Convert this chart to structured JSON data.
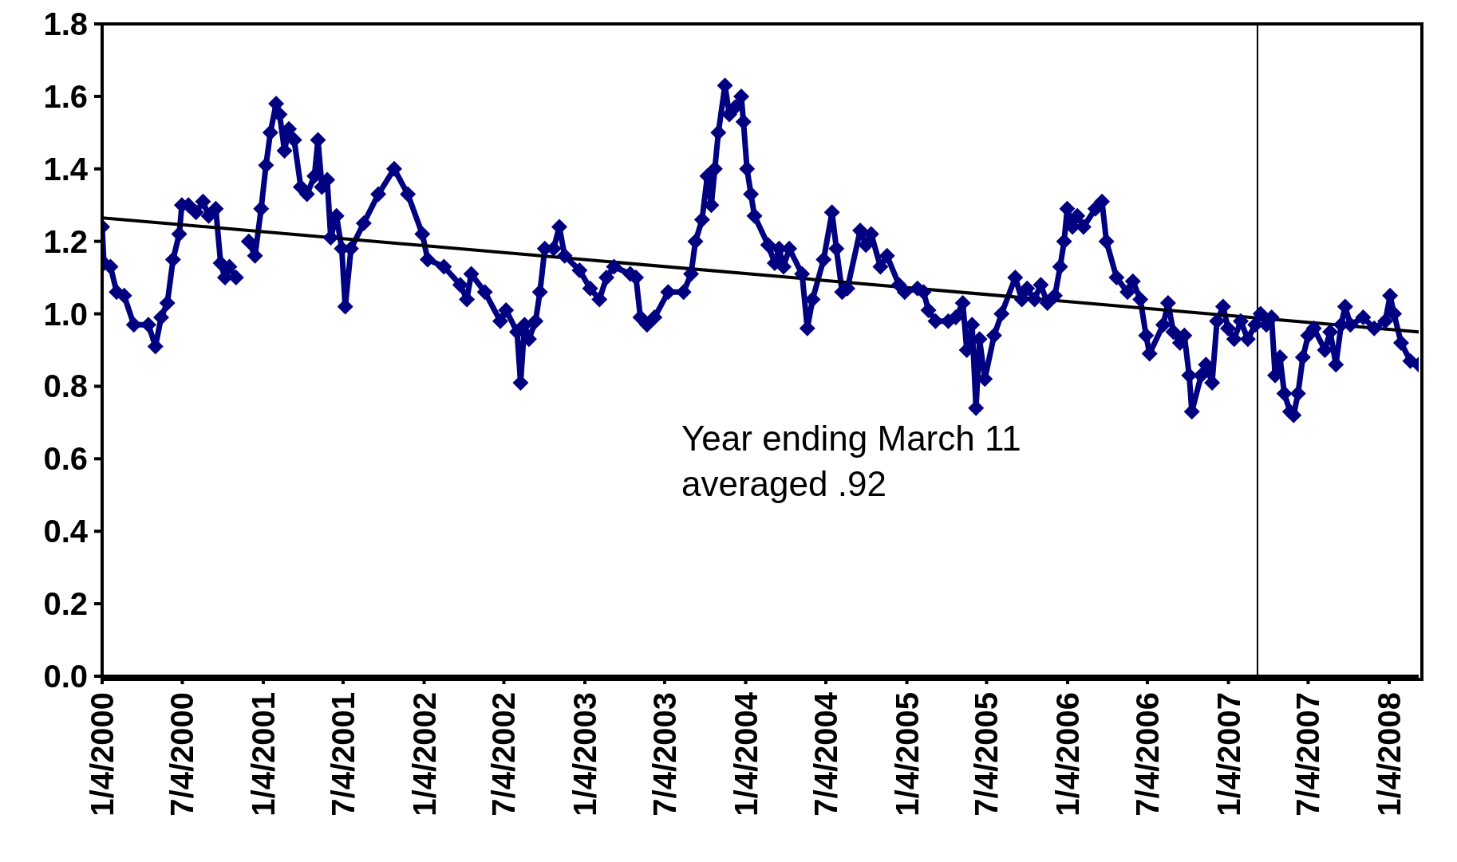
{
  "chart_data": {
    "type": "line",
    "xlim": [
      "2000-01-04",
      "2008-03-11"
    ],
    "xticks": [
      {
        "value": "2000-01-04",
        "label": "1/4/2000"
      },
      {
        "value": "2000-07-04",
        "label": "7/4/2000"
      },
      {
        "value": "2001-01-04",
        "label": "1/4/2001"
      },
      {
        "value": "2001-07-04",
        "label": "7/4/2001"
      },
      {
        "value": "2002-01-04",
        "label": "1/4/2002"
      },
      {
        "value": "2002-07-04",
        "label": "7/4/2002"
      },
      {
        "value": "2003-01-04",
        "label": "1/4/2003"
      },
      {
        "value": "2003-07-04",
        "label": "7/4/2003"
      },
      {
        "value": "2004-01-04",
        "label": "1/4/2004"
      },
      {
        "value": "2004-07-04",
        "label": "7/4/2004"
      },
      {
        "value": "2005-01-04",
        "label": "1/4/2005"
      },
      {
        "value": "2005-07-04",
        "label": "7/4/2005"
      },
      {
        "value": "2006-01-04",
        "label": "1/4/2006"
      },
      {
        "value": "2006-07-04",
        "label": "7/4/2006"
      },
      {
        "value": "2007-01-04",
        "label": "1/4/2007"
      },
      {
        "value": "2007-07-04",
        "label": "7/4/2007"
      },
      {
        "value": "2008-01-04",
        "label": "1/4/2008"
      }
    ],
    "ylim": [
      0,
      1.8
    ],
    "yticks": [
      {
        "value": 0,
        "label": "0.0"
      },
      {
        "value": 0.2,
        "label": "0.2"
      },
      {
        "value": 0.4,
        "label": "0.4"
      },
      {
        "value": 0.6,
        "label": "0.6"
      },
      {
        "value": 0.8,
        "label": "0.8"
      },
      {
        "value": 1,
        "label": "1.0"
      },
      {
        "value": 1.2,
        "label": "1.2"
      },
      {
        "value": 1.4,
        "label": "1.4"
      },
      {
        "value": 1.6,
        "label": "1.6"
      },
      {
        "value": 1.8,
        "label": "1.8"
      }
    ],
    "ref_lines": [
      {
        "axis": "x",
        "value": "2007-03-11",
        "color": "#000000"
      }
    ],
    "annotations": [
      "Year ending March 11\naveraged .92"
    ],
    "series": [
      {
        "color": "#000080",
        "marker": "diamond",
        "line_style": "solid",
        "x": [
          "2000-01-04",
          "2000-01-08",
          "2000-01-23",
          "2000-02-06",
          "2000-02-23",
          "2000-03-16",
          "2000-04-18",
          "2000-05-04",
          "2000-05-17",
          "2000-05-31",
          "2000-06-13",
          "2000-06-27",
          "2000-07-03",
          "2000-07-18",
          "2000-08-04",
          "2000-08-20",
          "2000-09-02",
          "2000-09-18",
          "2000-09-29",
          "2000-10-09",
          "2000-10-19",
          "2000-11-03",
          "2000-11-15",
          "2000-12-02",
          "2000-12-16",
          "2000-12-30",
          "2001-01-10",
          "2001-01-20",
          "2001-02-02",
          "2001-02-10",
          "2001-02-21",
          "2001-03-03",
          "2001-03-15",
          "2001-03-30",
          "2001-04-13",
          "2001-04-30",
          "2001-05-08",
          "2001-05-17",
          "2001-05-29",
          "2001-06-06",
          "2001-06-19",
          "2001-07-01",
          "2001-07-09",
          "2001-07-22",
          "2001-08-20",
          "2001-09-22",
          "2001-10-28",
          "2001-11-28",
          "2001-12-31",
          "2002-01-12",
          "2002-02-18",
          "2002-03-27",
          "2002-04-11",
          "2002-04-21",
          "2002-05-22",
          "2002-06-26",
          "2002-07-09",
          "2002-08-03",
          "2002-08-11",
          "2002-08-20",
          "2002-08-30",
          "2002-09-14",
          "2002-09-24",
          "2002-10-05",
          "2002-10-25",
          "2002-11-07",
          "2002-11-19",
          "2002-12-23",
          "2003-01-16",
          "2003-02-06",
          "2003-02-22",
          "2003-03-11",
          "2003-04-17",
          "2003-04-30",
          "2003-05-10",
          "2003-05-25",
          "2003-06-11",
          "2003-07-12",
          "2003-08-16",
          "2003-09-02",
          "2003-09-12",
          "2003-09-27",
          "2003-10-09",
          "2003-10-18",
          "2003-10-26",
          "2003-11-03",
          "2003-11-18",
          "2003-11-28",
          "2003-12-11",
          "2003-12-25",
          "2003-12-30",
          "2004-01-07",
          "2004-01-16",
          "2004-01-24",
          "2004-02-24",
          "2004-03-10",
          "2004-03-20",
          "2004-03-30",
          "2004-04-12",
          "2004-05-11",
          "2004-05-23",
          "2004-06-04",
          "2004-06-29",
          "2004-07-18",
          "2004-07-28",
          "2004-08-10",
          "2004-08-22",
          "2004-09-20",
          "2004-10-03",
          "2004-10-15",
          "2004-11-05",
          "2004-11-20",
          "2004-12-17",
          "2004-12-30",
          "2005-01-28",
          "2005-02-11",
          "2005-02-22",
          "2005-03-10",
          "2005-04-08",
          "2005-04-25",
          "2005-05-11",
          "2005-05-20",
          "2005-06-01",
          "2005-06-10",
          "2005-06-18",
          "2005-06-30",
          "2005-07-21",
          "2005-08-07",
          "2005-09-07",
          "2005-09-22",
          "2005-10-04",
          "2005-10-21",
          "2005-11-04",
          "2005-11-19",
          "2005-12-06",
          "2005-12-18",
          "2005-12-27",
          "2006-01-03",
          "2006-01-15",
          "2006-01-26",
          "2006-02-09",
          "2006-03-08",
          "2006-03-23",
          "2006-04-02",
          "2006-04-25",
          "2006-05-20",
          "2006-06-01",
          "2006-06-18",
          "2006-07-01",
          "2006-07-09",
          "2006-08-09",
          "2006-08-20",
          "2006-09-01",
          "2006-09-16",
          "2006-09-26",
          "2006-10-07",
          "2006-10-13",
          "2006-11-03",
          "2006-11-14",
          "2006-11-28",
          "2006-12-09",
          "2006-12-23",
          "2007-01-03",
          "2007-01-17",
          "2007-02-01",
          "2007-02-17",
          "2007-03-06",
          "2007-03-18",
          "2007-03-31",
          "2007-04-12",
          "2007-04-20",
          "2007-05-01",
          "2007-05-11",
          "2007-05-24",
          "2007-06-01",
          "2007-06-11",
          "2007-06-22",
          "2007-07-04",
          "2007-07-17",
          "2007-08-11",
          "2007-08-23",
          "2007-09-05",
          "2007-09-17",
          "2007-09-26",
          "2007-10-08",
          "2007-11-06",
          "2007-12-01",
          "2007-12-26",
          "2008-01-06",
          "2008-01-15",
          "2008-01-31",
          "2008-02-21",
          "2008-03-11"
        ],
        "values": [
          1.24,
          1.14,
          1.13,
          1.06,
          1.05,
          0.97,
          0.97,
          0.91,
          0.99,
          1.03,
          1.15,
          1.22,
          1.3,
          1.3,
          1.28,
          1.31,
          1.27,
          1.29,
          1.14,
          1.1,
          1.13,
          1.1,
          null,
          1.2,
          1.16,
          1.29,
          1.41,
          1.5,
          1.58,
          1.55,
          1.45,
          1.51,
          1.48,
          1.35,
          1.33,
          1.38,
          1.48,
          1.35,
          1.37,
          1.21,
          1.27,
          1.18,
          1.02,
          1.18,
          1.25,
          1.33,
          1.4,
          1.33,
          1.22,
          1.15,
          1.13,
          1.08,
          1.04,
          1.11,
          1.06,
          0.98,
          1.01,
          0.95,
          0.81,
          0.97,
          0.93,
          0.98,
          1.06,
          1.18,
          1.18,
          1.24,
          1.16,
          1.12,
          1.07,
          1.04,
          1.1,
          1.13,
          1.11,
          1.1,
          0.99,
          0.97,
          0.99,
          1.06,
          1.06,
          1.11,
          1.2,
          1.26,
          1.38,
          1.3,
          1.4,
          1.5,
          1.63,
          1.55,
          1.57,
          1.6,
          1.53,
          1.4,
          1.33,
          1.27,
          1.19,
          1.14,
          1.18,
          1.13,
          1.18,
          1.11,
          0.96,
          1.04,
          1.15,
          1.28,
          1.18,
          1.06,
          1.07,
          1.23,
          1.19,
          1.22,
          1.13,
          1.16,
          1.08,
          1.06,
          1.07,
          1.06,
          1.01,
          0.98,
          0.98,
          0.99,
          1.03,
          0.9,
          0.97,
          0.74,
          0.93,
          0.82,
          0.94,
          1.0,
          1.1,
          1.04,
          1.07,
          1.04,
          1.08,
          1.03,
          1.05,
          1.13,
          1.2,
          1.29,
          1.24,
          1.27,
          1.24,
          1.29,
          1.31,
          1.2,
          1.1,
          1.06,
          1.09,
          1.04,
          0.94,
          0.89,
          0.97,
          1.03,
          0.95,
          0.92,
          0.94,
          0.83,
          0.73,
          0.83,
          0.86,
          0.81,
          0.98,
          1.02,
          0.96,
          0.93,
          0.98,
          0.93,
          0.97,
          1.0,
          0.97,
          0.99,
          0.83,
          0.88,
          0.78,
          0.73,
          0.72,
          0.78,
          0.88,
          0.94,
          0.96,
          0.9,
          0.95,
          0.86,
          0.97,
          1.02,
          0.97,
          0.99,
          0.96,
          0.98,
          1.05,
          1.0,
          0.92,
          0.87,
          0.86
        ]
      },
      {
        "color": "#000000",
        "marker": "none",
        "line_style": "solid",
        "x": [
          "2000-01-04",
          "2008-03-11"
        ],
        "values": [
          1.265,
          0.95
        ]
      }
    ]
  }
}
